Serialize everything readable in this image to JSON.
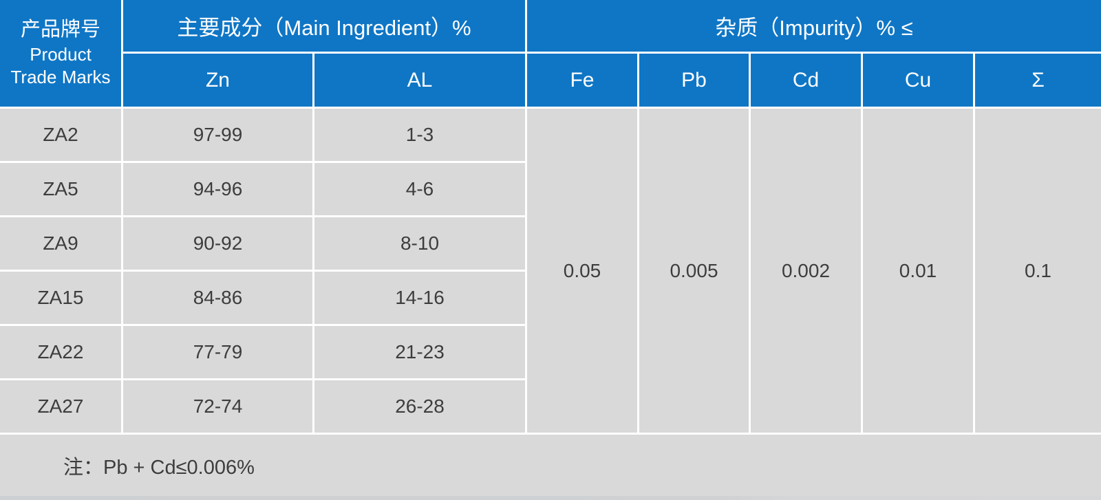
{
  "table": {
    "header": {
      "product_col": {
        "zh": "产品牌号",
        "en_line1": "Product",
        "en_line2": "Trade Marks"
      },
      "main_group": "主要成分（Main Ingredient）%",
      "impurity_group": "杂质（Impurity）% ≤",
      "main_cols": {
        "zn": "Zn",
        "al": "AL"
      },
      "impurity_cols": {
        "fe": "Fe",
        "pb": "Pb",
        "cd": "Cd",
        "cu": "Cu",
        "sum": "Σ"
      }
    },
    "rows": [
      {
        "mark": "ZA2",
        "zn": "97-99",
        "al": "1-3"
      },
      {
        "mark": "ZA5",
        "zn": "94-96",
        "al": "4-6"
      },
      {
        "mark": "ZA9",
        "zn": "90-92",
        "al": "8-10"
      },
      {
        "mark": "ZA15",
        "zn": "84-86",
        "al": "14-16"
      },
      {
        "mark": "ZA22",
        "zn": "77-79",
        "al": "21-23"
      },
      {
        "mark": "ZA27",
        "zn": "72-74",
        "al": "26-28"
      }
    ],
    "impurity_values": {
      "fe": "0.05",
      "pb": "0.005",
      "cd": "0.002",
      "cu": "0.01",
      "sum": "0.1"
    },
    "note": "注：Pb + Cd≤0.006%"
  },
  "colors": {
    "header_blue": "#0f76c5",
    "cell_gray": "#d9d9d9",
    "gridline_white": "#ffffff",
    "text_dark": "#3d3d3d",
    "bottom_strip_gray": "#cfd1d3"
  }
}
